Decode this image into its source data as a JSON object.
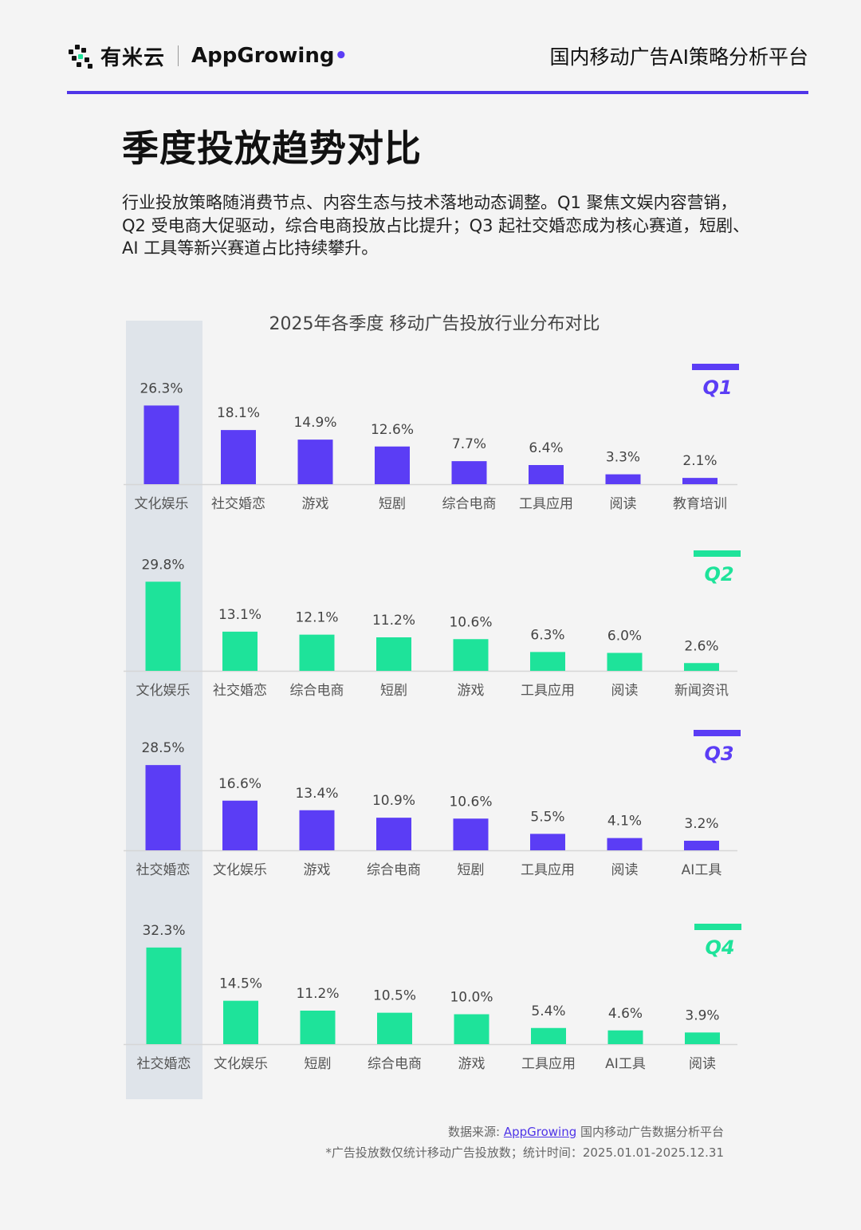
{
  "header": {
    "logo_cn": "有米云",
    "logo_en": "AppGrowing",
    "platform": "国内移动广告AI策略分析平台"
  },
  "page_title": "季度投放趋势对比",
  "intro": "行业投放策略随消费节点、内容生态与技术落地动态调整。Q1 聚焦文娱内容营销，Q2 受电商大促驱动，综合电商投放占比提升；Q3 起社交婚恋成为核心赛道，短剧、AI 工具等新兴赛道占比持续攀升。",
  "colors": {
    "q_odd": "#5b3df5",
    "q_even": "#1ee39a",
    "highlight_band": "#dfe4ea",
    "rule": "#4f35e8"
  },
  "chart_data": {
    "type": "bar",
    "title": "2025年各季度 移动广告投放行业分布对比",
    "value_suffix": "%",
    "panels": [
      {
        "name": "Q1",
        "color": "#5b3df5",
        "categories": [
          "文化娱乐",
          "社交婚恋",
          "游戏",
          "短剧",
          "综合电商",
          "工具应用",
          "阅读",
          "教育培训"
        ],
        "values": [
          26.3,
          18.1,
          14.9,
          12.6,
          7.7,
          6.4,
          3.3,
          2.1
        ]
      },
      {
        "name": "Q2",
        "color": "#1ee39a",
        "categories": [
          "文化娱乐",
          "社交婚恋",
          "综合电商",
          "短剧",
          "游戏",
          "工具应用",
          "阅读",
          "新闻资讯"
        ],
        "values": [
          29.8,
          13.1,
          12.1,
          11.2,
          10.6,
          6.3,
          6.0,
          2.6
        ]
      },
      {
        "name": "Q3",
        "color": "#5b3df5",
        "categories": [
          "社交婚恋",
          "文化娱乐",
          "游戏",
          "综合电商",
          "短剧",
          "工具应用",
          "阅读",
          "AI工具"
        ],
        "values": [
          28.5,
          16.6,
          13.4,
          10.9,
          10.6,
          5.5,
          4.1,
          3.2
        ]
      },
      {
        "name": "Q4",
        "color": "#1ee39a",
        "categories": [
          "社交婚恋",
          "文化娱乐",
          "短剧",
          "综合电商",
          "游戏",
          "工具应用",
          "AI工具",
          "阅读"
        ],
        "values": [
          32.3,
          14.5,
          11.2,
          10.5,
          10.0,
          5.4,
          4.6,
          3.9
        ]
      }
    ]
  },
  "footer": {
    "source_prefix": "数据来源: ",
    "source_link": "AppGrowing",
    "source_suffix": " 国内移动广告数据分析平台",
    "note": "*广告投放数仅统计移动广告投放数；统计时间：2025.01.01-2025.12.31"
  }
}
